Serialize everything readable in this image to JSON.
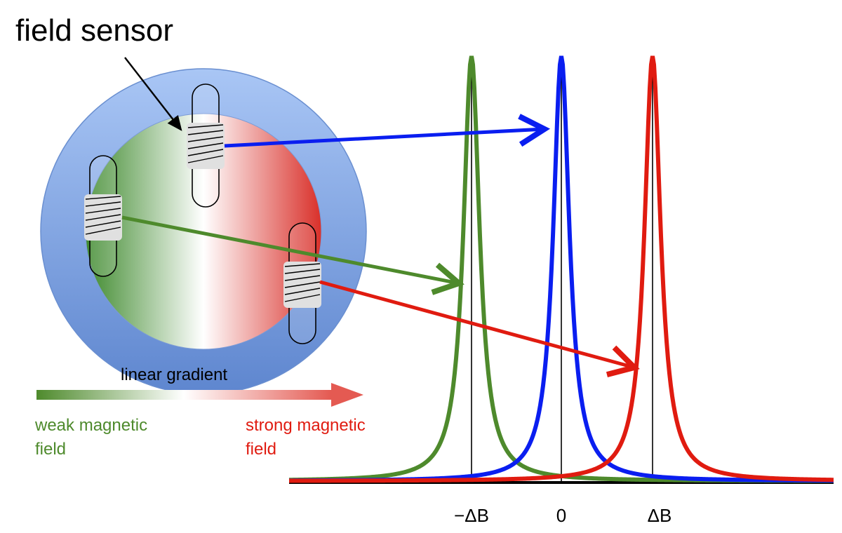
{
  "title": "field sensor",
  "gradient_label": "linear gradient",
  "weak_label": [
    "weak magnetic",
    "field"
  ],
  "strong_label": [
    "strong magnetic",
    "field"
  ],
  "axis_ticks": [
    "−ΔB",
    "0",
    "ΔB"
  ],
  "colors": {
    "weak": "#4e8a2c",
    "zero": "#0a1ef0",
    "strong": "#e01b10",
    "ring": "#7ea3e0",
    "axis": "#000000"
  },
  "chart_data": {
    "type": "line",
    "xlabel": "",
    "ylabel": "",
    "x_ticks": [
      "−ΔB",
      "0",
      "ΔB"
    ],
    "series": [
      {
        "color": "#4e8a2c",
        "center": "−ΔB",
        "shape": "lorentzian"
      },
      {
        "color": "#0a1ef0",
        "center": "0",
        "shape": "lorentzian"
      },
      {
        "color": "#e01b10",
        "center": "ΔB",
        "shape": "lorentzian"
      }
    ]
  }
}
